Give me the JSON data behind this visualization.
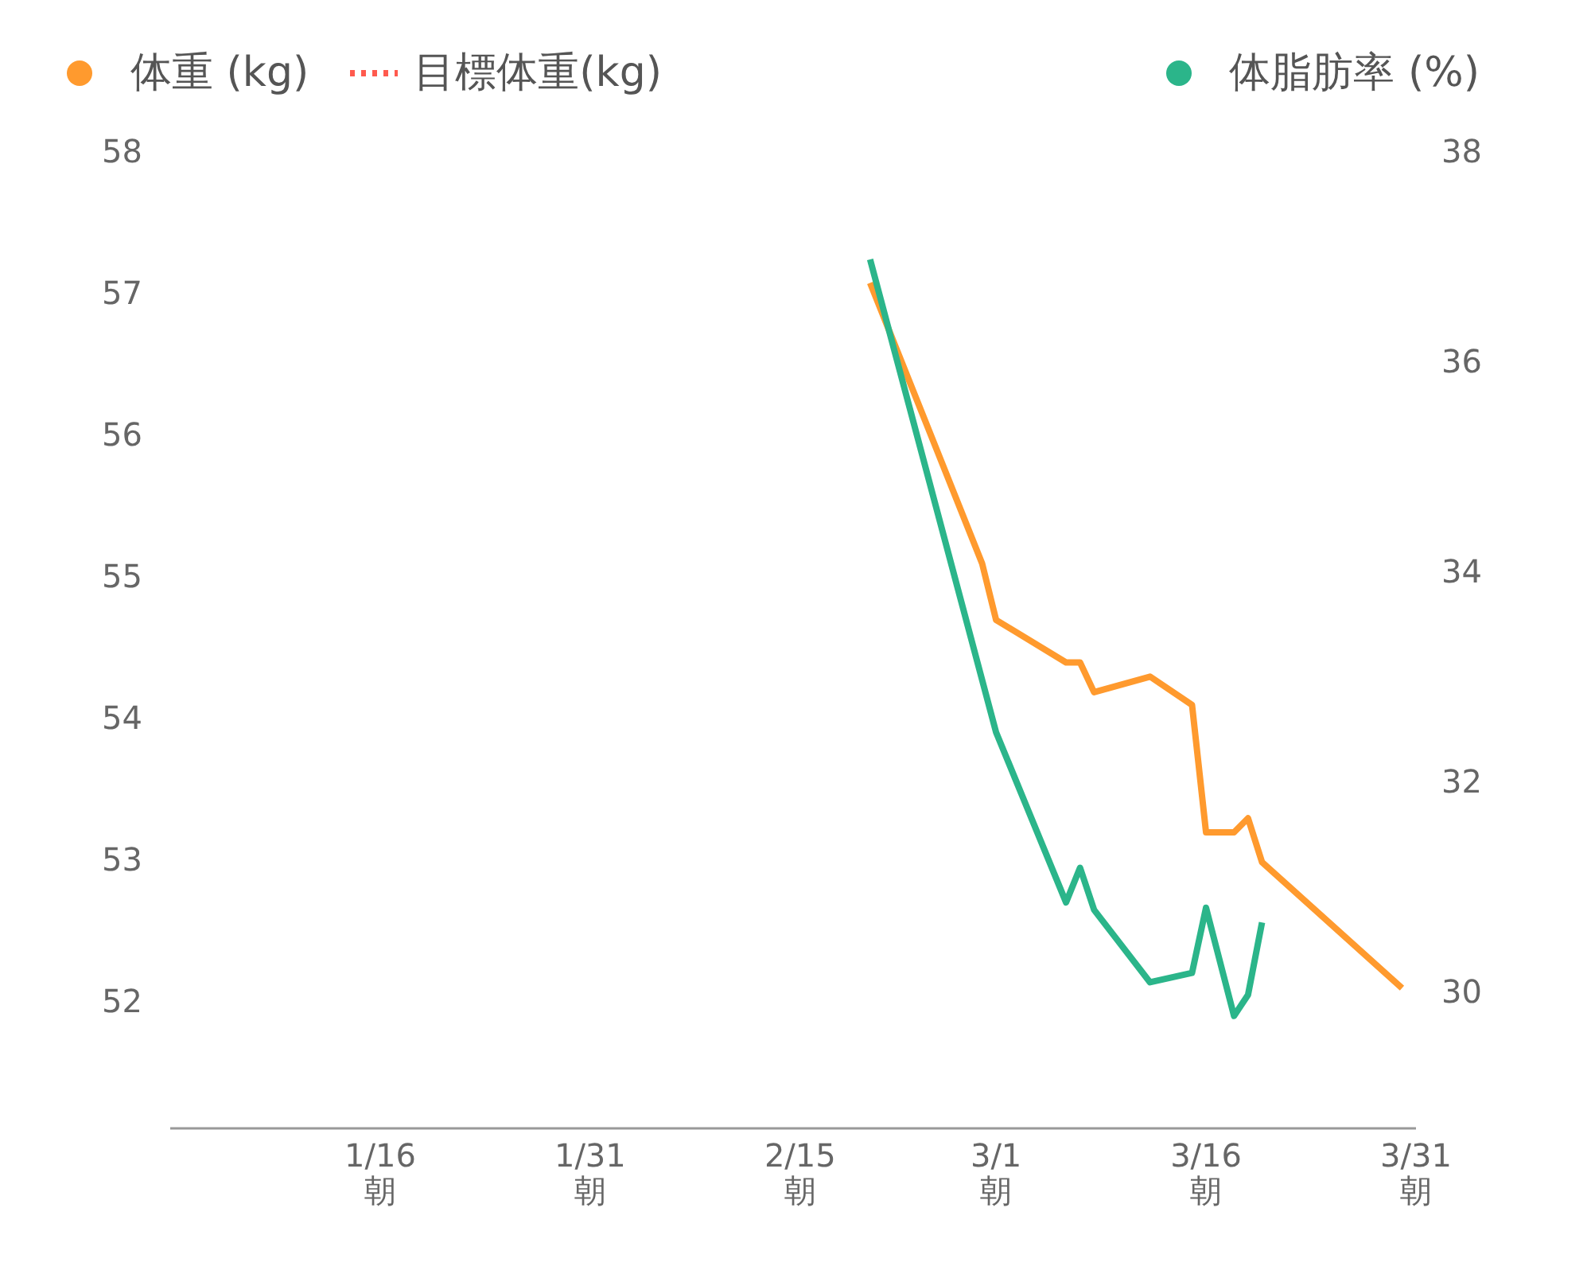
{
  "chart_data": {
    "type": "line",
    "legend": "top",
    "grid": false,
    "marker": "none",
    "xlim": [
      "--01-01",
      "--03-31"
    ],
    "xticks": [
      {
        "value": "--01-16",
        "label": "1/16\n朝"
      },
      {
        "value": "--01-31",
        "label": "1/31\n朝"
      },
      {
        "value": "--02-15",
        "label": "2/15\n朝"
      },
      {
        "value": "--03-01",
        "label": "3/1\n朝"
      },
      {
        "value": "--03-16",
        "label": "3/16\n朝"
      },
      {
        "value": "--03-31",
        "label": "3/31\n朝"
      }
    ],
    "ylim": [
      51.1,
      58
    ],
    "yticks": [
      52,
      53,
      54,
      55,
      56,
      57,
      58
    ],
    "y2lim": [
      28.7,
      38
    ],
    "y2ticks": [
      30,
      32,
      34,
      36,
      38
    ],
    "series": [
      {
        "name": "体重 (kg)",
        "color": "#ff9a2e",
        "line_style": "solid",
        "x": [
          "--02-20",
          "--02-28",
          "--03-01",
          "--03-06",
          "--03-07",
          "--03-08",
          "--03-12",
          "--03-15",
          "--03-16",
          "--03-18",
          "--03-19",
          "--03-20",
          "--03-30"
        ],
        "values": [
          57.07,
          55.09,
          54.69,
          54.39,
          54.39,
          54.18,
          54.29,
          54.09,
          53.19,
          53.19,
          53.29,
          52.98,
          52.09
        ]
      },
      {
        "name": "目標体重(kg)",
        "color": "#ff5a4e",
        "line_style": "dotted"
      },
      {
        "name": "体脂肪率 (%)",
        "color": "#2bb58a",
        "line_style": "solid",
        "axis": "y2",
        "x": [
          "--02-20",
          "--03-01",
          "--03-06",
          "--03-07",
          "--03-08",
          "--03-12",
          "--03-15",
          "--03-16",
          "--03-18",
          "--03-19",
          "--03-20"
        ],
        "values": [
          36.97,
          32.47,
          30.85,
          31.18,
          30.78,
          30.09,
          30.18,
          30.8,
          29.77,
          29.97,
          30.66
        ]
      }
    ]
  }
}
